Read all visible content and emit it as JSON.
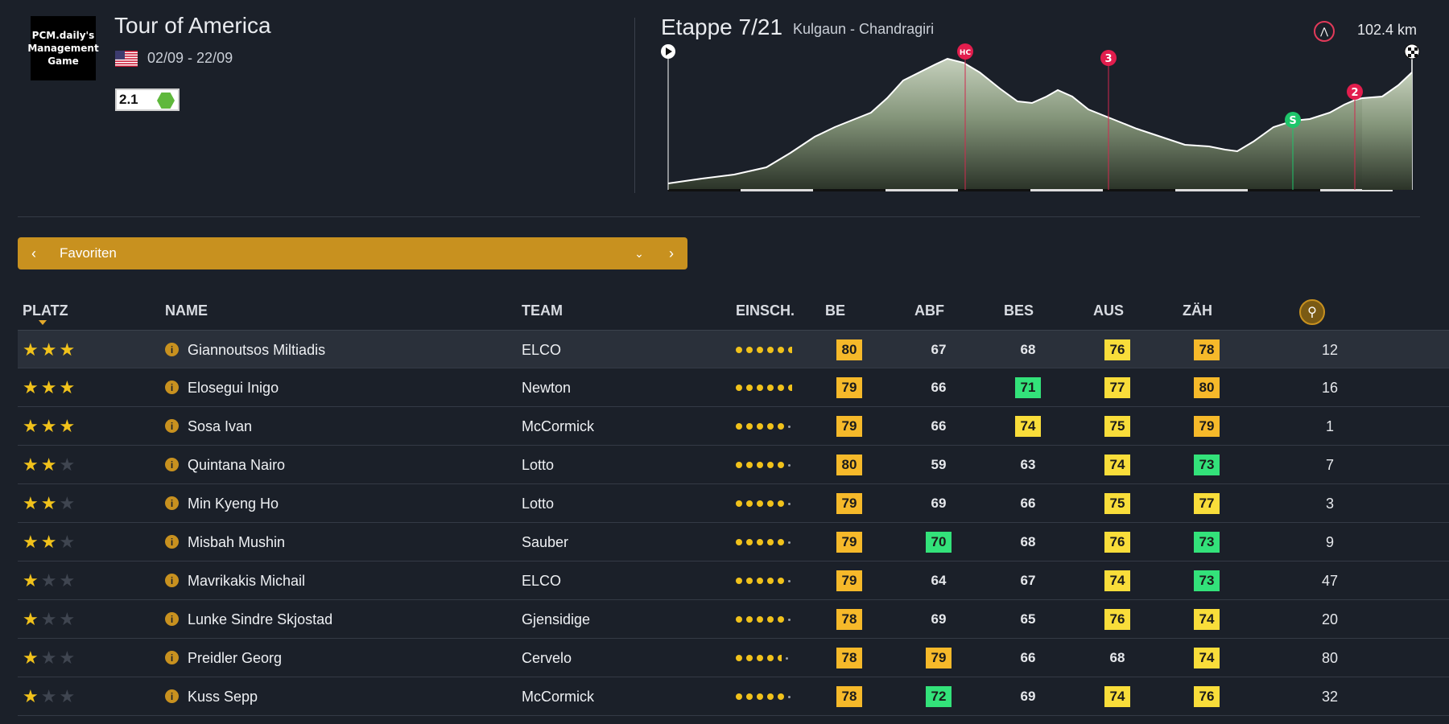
{
  "header": {
    "logo_text": "PCM.daily's Management Game",
    "race_title": "Tour of America",
    "dates": "02/09 - 22/09",
    "category": "2.1",
    "colors": {
      "category_hex": "#5fb83c"
    }
  },
  "stage": {
    "title": "Etappe 7/21",
    "route": "Kulgaun - Chandragiri",
    "distance": "102.4 km",
    "markers": [
      {
        "label": "HC",
        "color": "#e21d4d"
      },
      {
        "label": "3",
        "color": "#e21d4d"
      },
      {
        "label": "S",
        "color": "#1ec56a"
      },
      {
        "label": "2",
        "color": "#e21d4d"
      }
    ]
  },
  "filter": {
    "label": "Favoriten",
    "prev_icon": "chevron-left-icon",
    "next_icon": "chevron-right-icon",
    "dropdown_icon": "chevron-down-icon"
  },
  "table": {
    "headers": {
      "platz": "PLATZ",
      "name": "NAME",
      "team": "TEAM",
      "einsch": "EINSCH.",
      "be": "BE",
      "abf": "ABF",
      "bes": "BES",
      "aus": "AUS",
      "zah": "ZÄH"
    },
    "rows": [
      {
        "stars": 3,
        "name": "Giannoutsos Miltiadis",
        "team": "ELCO",
        "form": "full6",
        "be": {
          "v": "80",
          "c": "orange"
        },
        "abf": {
          "v": "67",
          "c": "none"
        },
        "bes": {
          "v": "68",
          "c": "none"
        },
        "aus": {
          "v": "76",
          "c": "yellow"
        },
        "zah": {
          "v": "78",
          "c": "orange"
        },
        "rank": "12"
      },
      {
        "stars": 3,
        "name": "Elosegui Inigo",
        "team": "Newton",
        "form": "full6",
        "be": {
          "v": "79",
          "c": "orange"
        },
        "abf": {
          "v": "66",
          "c": "none"
        },
        "bes": {
          "v": "71",
          "c": "green"
        },
        "aus": {
          "v": "77",
          "c": "yellow"
        },
        "zah": {
          "v": "80",
          "c": "orange"
        },
        "rank": "16"
      },
      {
        "stars": 3,
        "name": "Sosa Ivan",
        "team": "McCormick",
        "form": "five",
        "be": {
          "v": "79",
          "c": "orange"
        },
        "abf": {
          "v": "66",
          "c": "none"
        },
        "bes": {
          "v": "74",
          "c": "yellow"
        },
        "aus": {
          "v": "75",
          "c": "yellow"
        },
        "zah": {
          "v": "79",
          "c": "orange"
        },
        "rank": "1"
      },
      {
        "stars": 2,
        "name": "Quintana Nairo",
        "team": "Lotto",
        "form": "five",
        "be": {
          "v": "80",
          "c": "orange"
        },
        "abf": {
          "v": "59",
          "c": "none"
        },
        "bes": {
          "v": "63",
          "c": "none"
        },
        "aus": {
          "v": "74",
          "c": "yellow"
        },
        "zah": {
          "v": "73",
          "c": "green"
        },
        "rank": "7"
      },
      {
        "stars": 2,
        "name": "Min Kyeng Ho",
        "team": "Lotto",
        "form": "five",
        "be": {
          "v": "79",
          "c": "orange"
        },
        "abf": {
          "v": "69",
          "c": "none"
        },
        "bes": {
          "v": "66",
          "c": "none"
        },
        "aus": {
          "v": "75",
          "c": "yellow"
        },
        "zah": {
          "v": "77",
          "c": "yellow"
        },
        "rank": "3"
      },
      {
        "stars": 2,
        "name": "Misbah Mushin",
        "team": "Sauber",
        "form": "five",
        "be": {
          "v": "79",
          "c": "orange"
        },
        "abf": {
          "v": "70",
          "c": "green"
        },
        "bes": {
          "v": "68",
          "c": "none"
        },
        "aus": {
          "v": "76",
          "c": "yellow"
        },
        "zah": {
          "v": "73",
          "c": "green"
        },
        "rank": "9"
      },
      {
        "stars": 1,
        "name": "Mavrikakis Michail",
        "team": "ELCO",
        "form": "five",
        "be": {
          "v": "79",
          "c": "orange"
        },
        "abf": {
          "v": "64",
          "c": "none"
        },
        "bes": {
          "v": "67",
          "c": "none"
        },
        "aus": {
          "v": "74",
          "c": "yellow"
        },
        "zah": {
          "v": "73",
          "c": "green"
        },
        "rank": "47"
      },
      {
        "stars": 1,
        "name": "Lunke Sindre Skjostad",
        "team": "Gjensidige",
        "form": "five",
        "be": {
          "v": "78",
          "c": "orange"
        },
        "abf": {
          "v": "69",
          "c": "none"
        },
        "bes": {
          "v": "65",
          "c": "none"
        },
        "aus": {
          "v": "76",
          "c": "yellow"
        },
        "zah": {
          "v": "74",
          "c": "yellow"
        },
        "rank": "20"
      },
      {
        "stars": 1,
        "name": "Preidler Georg",
        "team": "Cervelo",
        "form": "fourhalf",
        "be": {
          "v": "78",
          "c": "orange"
        },
        "abf": {
          "v": "79",
          "c": "orange"
        },
        "bes": {
          "v": "66",
          "c": "none"
        },
        "aus": {
          "v": "68",
          "c": "none"
        },
        "zah": {
          "v": "74",
          "c": "yellow"
        },
        "rank": "80"
      },
      {
        "stars": 1,
        "name": "Kuss Sepp",
        "team": "McCormick",
        "form": "five",
        "be": {
          "v": "78",
          "c": "orange"
        },
        "abf": {
          "v": "72",
          "c": "green"
        },
        "bes": {
          "v": "69",
          "c": "none"
        },
        "aus": {
          "v": "74",
          "c": "yellow"
        },
        "zah": {
          "v": "76",
          "c": "yellow"
        },
        "rank": "32"
      }
    ]
  }
}
